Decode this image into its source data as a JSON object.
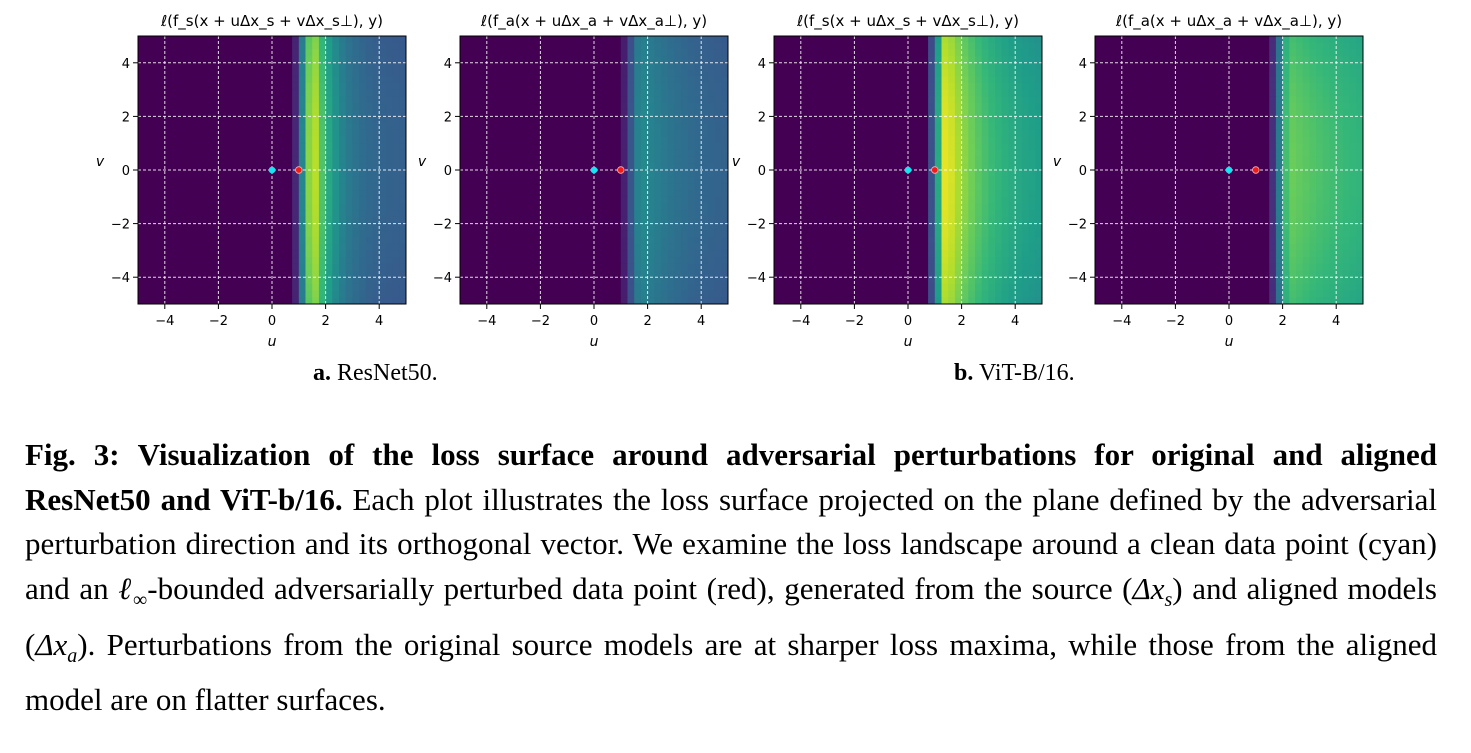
{
  "chart_data": [
    {
      "type": "heatmap",
      "model": "ResNet50",
      "title": "ℓ(f_s(x + uΔx_s + vΔx_s⊥), y)",
      "xlabel": "u",
      "ylabel": "v",
      "xlim": [
        -5,
        5
      ],
      "ylim": [
        -5,
        5
      ],
      "xticks": [
        -4,
        -2,
        0,
        2,
        4
      ],
      "yticks": [
        4,
        2,
        0,
        -2,
        -4
      ],
      "grid": true,
      "peak_u": 1.5,
      "peak_intensity": 1.0,
      "sharpness": 1.35,
      "far_level": 0.3,
      "clean_point": {
        "u": 0,
        "v": 0,
        "color": "cyan"
      },
      "adv_point": {
        "u": 1,
        "v": 0,
        "color": "red"
      }
    },
    {
      "type": "heatmap",
      "model": "ResNet50",
      "title": "ℓ(f_a(x + uΔx_a + vΔx_a⊥), y)",
      "xlabel": "u",
      "ylabel": "v",
      "xlim": [
        -5,
        5
      ],
      "ylim": [
        -5,
        5
      ],
      "xticks": [
        -4,
        -2,
        0,
        2,
        4
      ],
      "yticks": [
        4,
        2,
        0,
        -2,
        -4
      ],
      "grid": true,
      "peak_u": 1.7,
      "peak_intensity": 0.5,
      "sharpness": 0.6,
      "far_level": 0.28,
      "clean_point": {
        "u": 0,
        "v": 0,
        "color": "cyan"
      },
      "adv_point": {
        "u": 1,
        "v": 0,
        "color": "red"
      }
    },
    {
      "type": "heatmap",
      "model": "ViT-B/16",
      "title": "ℓ(f_s(x + uΔx_s + vΔx_s⊥), y)",
      "xlabel": "u",
      "ylabel": "v",
      "xlim": [
        -5,
        5
      ],
      "ylim": [
        -5,
        5
      ],
      "xticks": [
        -4,
        -2,
        0,
        2,
        4
      ],
      "yticks": [
        4,
        2,
        0,
        -2,
        -4
      ],
      "grid": true,
      "peak_u": 1.4,
      "peak_intensity": 1.0,
      "sharpness": 0.6,
      "far_level": 0.5,
      "clean_point": {
        "u": 0,
        "v": 0,
        "color": "cyan"
      },
      "adv_point": {
        "u": 1,
        "v": 0,
        "color": "red"
      }
    },
    {
      "type": "heatmap",
      "model": "ViT-B/16",
      "title": "ℓ(f_a(x + uΔx_a + vΔx_a⊥), y)",
      "xlabel": "u",
      "ylabel": "v",
      "xlim": [
        -5,
        5
      ],
      "ylim": [
        -5,
        5
      ],
      "xticks": [
        -4,
        -2,
        0,
        2,
        4
      ],
      "yticks": [
        4,
        2,
        0,
        -2,
        -4
      ],
      "grid": true,
      "peak_u": 2.2,
      "peak_intensity": 0.78,
      "sharpness": 0.25,
      "far_level": 0.52,
      "clean_point": {
        "u": 0,
        "v": 0,
        "color": "cyan"
      },
      "adv_point": {
        "u": 1,
        "v": 0,
        "color": "red"
      }
    }
  ],
  "subcaptions": [
    {
      "label": "a.",
      "text": "ResNet50."
    },
    {
      "label": "b.",
      "text": "ViT-B/16."
    }
  ],
  "caption": {
    "fig_label": "Fig. 3:",
    "bold_title": "Visualization of the loss surface around adversarial perturbations for original and aligned ResNet50 and ViT-b/16.",
    "text_1": "Each plot illustrates the loss surface projected on the plane defined by the adversarial perturbation direction and its orthogonal vector. We examine the loss landscape around a clean data point (cyan) and an ",
    "linf_base": "ℓ",
    "linf_sub": "∞",
    "text_2": "-bounded adversarially perturbed data point (red), generated from the source (",
    "dxs_main": "Δx",
    "dxs_sub": "s",
    "text_3": ") and aligned models (",
    "dxa_main": "Δx",
    "dxa_sub": "a",
    "text_4": "). Perturbations from the original source models are at sharper loss maxima, while those from the aligned model are on flatter surfaces."
  }
}
